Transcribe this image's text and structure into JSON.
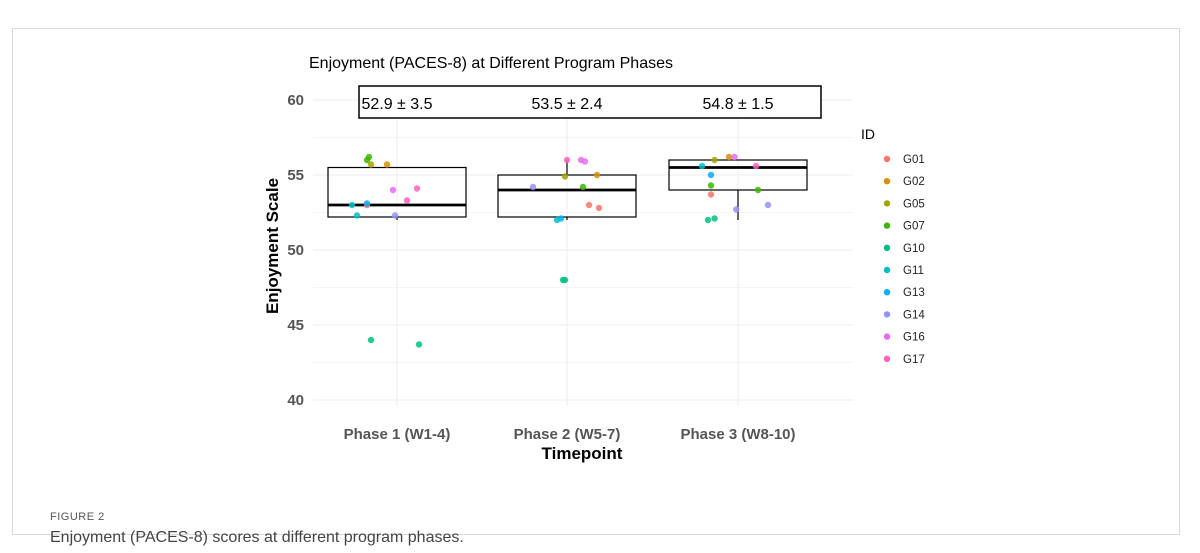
{
  "figure": {
    "label": "FIGURE 2",
    "caption": "Enjoyment (PACES-8) scores at different program phases."
  },
  "chart_data": {
    "type": "box",
    "title": "Enjoyment (PACES-8) at Different Program Phases",
    "xlabel": "Timepoint",
    "ylabel": "Enjoyment Scale",
    "ylim": [
      39,
      61
    ],
    "yticks": [
      40,
      45,
      50,
      55,
      60
    ],
    "grid": true,
    "legend_title": "ID",
    "legend_position": "right",
    "categories": [
      "Phase 1 (W1-4)",
      "Phase 2 (W5-7)",
      "Phase 3 (W8-10)"
    ],
    "summary_labels": [
      "52.9 ± 3.5",
      "53.5 ± 2.4",
      "54.8 ± 1.5"
    ],
    "boxes": [
      {
        "q1": 52.2,
        "median": 53.0,
        "q3": 55.5,
        "whisker_low": 52.0,
        "whisker_high": 55.5
      },
      {
        "q1": 52.2,
        "median": 54.0,
        "q3": 55.0,
        "whisker_low": 52.0,
        "whisker_high": 56.0
      },
      {
        "q1": 54.0,
        "median": 55.5,
        "q3": 56.0,
        "whisker_low": 52.0,
        "whisker_high": 56.0
      }
    ],
    "series": [
      {
        "name": "G01",
        "color": "#F8766D",
        "values": [
          53.0,
          53.0,
          53.7
        ]
      },
      {
        "name": "G02",
        "color": "#D89000",
        "values": [
          55.7,
          55.0,
          56.2
        ]
      },
      {
        "name": "G05",
        "color": "#A3A500",
        "values": [
          55.7,
          54.9,
          56.0
        ]
      },
      {
        "name": "G07",
        "color": "#39B600",
        "values": [
          56.0,
          54.2,
          54.3
        ]
      },
      {
        "name": "G10",
        "color": "#00BF7D",
        "values": [
          44.0,
          48.0,
          52.1
        ]
      },
      {
        "name": "G11",
        "color": "#00BFC4",
        "values": [
          52.3,
          52.0,
          55.6
        ]
      },
      {
        "name": "G13",
        "color": "#00B0F6",
        "values": [
          53.1,
          52.1,
          55.0
        ]
      },
      {
        "name": "G14",
        "color": "#9590FF",
        "values": [
          52.3,
          54.2,
          52.7
        ]
      },
      {
        "name": "G16",
        "color": "#E76BF3",
        "values": [
          54.0,
          55.9,
          56.2
        ]
      },
      {
        "name": "G17",
        "color": "#FF62BC",
        "values": [
          54.1,
          56.0,
          55.6
        ]
      }
    ],
    "extra_points": [
      {
        "category": 0,
        "color": "#39B600",
        "value": 56.2
      },
      {
        "category": 0,
        "color": "#00BF7D",
        "value": 43.7
      },
      {
        "category": 0,
        "color": "#00BFC4",
        "value": 53.0
      },
      {
        "category": 0,
        "color": "#FF62BC",
        "value": 53.3
      },
      {
        "category": 1,
        "color": "#00BF7D",
        "value": 48.0
      },
      {
        "category": 1,
        "color": "#F8766D",
        "value": 52.8
      },
      {
        "category": 1,
        "color": "#E76BF3",
        "value": 56.0
      },
      {
        "category": 2,
        "color": "#00BF7D",
        "value": 52.0
      },
      {
        "category": 2,
        "color": "#9590FF",
        "value": 53.0
      },
      {
        "category": 2,
        "color": "#39B600",
        "value": 54.0
      }
    ]
  }
}
